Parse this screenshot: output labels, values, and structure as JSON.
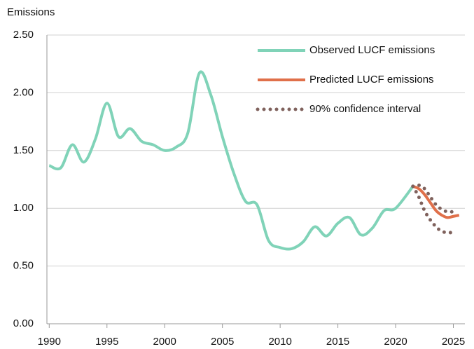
{
  "chart_data": {
    "type": "line",
    "y_label": "Emissions",
    "xlim": [
      1989.8,
      2026
    ],
    "xticks": [
      1990,
      1995,
      2000,
      2005,
      2010,
      2015,
      2020,
      2025
    ],
    "ylim": [
      0,
      2.5
    ],
    "yticks": [
      {
        "value": 0,
        "label": "0.00"
      },
      {
        "value": 0.5,
        "label": "0.50"
      },
      {
        "value": 1,
        "label": "1.00"
      },
      {
        "value": 1.5,
        "label": "1.50"
      },
      {
        "value": 2,
        "label": "2.00"
      },
      {
        "value": 2.5,
        "label": "2.50"
      }
    ],
    "grid": true,
    "legend": "top-right",
    "series": [
      {
        "name": "Observed LUCF emissions",
        "color": "#80d3b8",
        "style": "solid",
        "x": [
          1990,
          1991,
          1992,
          1993,
          1994,
          1995,
          1996,
          1997,
          1998,
          1999,
          2000,
          2001,
          2002,
          2003,
          2004,
          2005,
          2006,
          2007,
          2008,
          2009,
          2010,
          2011,
          2012,
          2013,
          2014,
          2015,
          2016,
          2017,
          2018,
          2019,
          2020,
          2021.5
        ],
        "values": [
          1.37,
          1.35,
          1.55,
          1.4,
          1.6,
          1.91,
          1.62,
          1.69,
          1.58,
          1.55,
          1.5,
          1.53,
          1.65,
          2.17,
          1.98,
          1.62,
          1.3,
          1.06,
          1.03,
          0.72,
          0.66,
          0.65,
          0.71,
          0.84,
          0.76,
          0.87,
          0.92,
          0.77,
          0.83,
          0.98,
          1.0,
          1.19
        ]
      },
      {
        "name": "Predicted LUCF emissions",
        "color": "#e0704a",
        "style": "solid",
        "x": [
          2021.5,
          2022,
          2022.5,
          2023,
          2023.5,
          2024,
          2024.5,
          2025,
          2025.5
        ],
        "values": [
          1.19,
          1.17,
          1.12,
          1.05,
          0.98,
          0.94,
          0.92,
          0.93,
          0.94
        ]
      },
      {
        "name": "90% confidence interval",
        "color": "#7f615c",
        "style": "dotted",
        "x": [
          2021.5,
          2022,
          2022.5,
          2023,
          2023.5,
          2024,
          2024.5,
          2025
        ],
        "upper": [
          1.19,
          1.2,
          1.17,
          1.1,
          1.03,
          0.99,
          0.97,
          0.97
        ],
        "lower": [
          1.19,
          1.1,
          0.98,
          0.9,
          0.84,
          0.8,
          0.79,
          0.79
        ]
      }
    ]
  }
}
